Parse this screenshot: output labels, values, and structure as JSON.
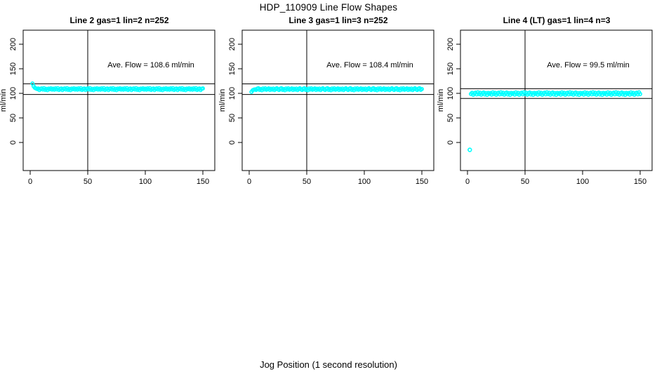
{
  "page": {
    "main_title": "HDP_110909  Line Flow Shapes",
    "x_axis_label": "Jog Position (1 second resolution)"
  },
  "colors": {
    "point": "#00FFFF",
    "axis": "#000000",
    "background": "#FFFFFF"
  },
  "chart_data": {
    "type": "scatter",
    "title": "HDP_110909  Line Flow Shapes",
    "xlabel": "Jog Position (1 second resolution)",
    "ylabel": "ml/min",
    "marker": "open-circle",
    "point_color": "#00FFFF",
    "grid": false,
    "x_ticks": [
      0,
      50,
      100,
      150
    ],
    "y_ticks": [
      0,
      50,
      100,
      150,
      200
    ],
    "xlim": [
      -6,
      160
    ],
    "ylim": [
      -57,
      228
    ],
    "reference_vline_x": 50,
    "panels": [
      {
        "title": "Line 2 gas=1 lin=2 n=252",
        "ave_flow": 108.6,
        "ave_flow_text": "Ave. Flow =  108.6  ml/min",
        "ref_lines": [
          97.7,
          119.5
        ],
        "mean": 108.6,
        "x_start": 2,
        "x_end": 150,
        "noise_pattern": [
          0.9,
          -1.1,
          1.6,
          -0.5,
          2.0,
          -1.6,
          0.3,
          1.2,
          -1.9,
          0.7,
          1.4,
          -0.8,
          1.9,
          -1.4,
          0.5,
          -2.0,
          1.1,
          -0.3,
          1.6,
          -0.9
        ],
        "transient_points": [
          [
            2,
            120
          ],
          [
            3,
            114.5
          ],
          [
            4,
            111.5
          ],
          [
            5,
            110
          ]
        ],
        "outlier_points": []
      },
      {
        "title": "Line 3 gas=1 lin=3 n=252",
        "ave_flow": 108.4,
        "ave_flow_text": "Ave. Flow =  108.4  ml/min",
        "ref_lines": [
          97.6,
          119.2
        ],
        "mean": 108.4,
        "x_start": 2,
        "x_end": 150,
        "noise_pattern": [
          -0.8,
          1.3,
          -1.7,
          0.6,
          1.9,
          -0.4,
          -1.5,
          1.1,
          2.0,
          -1.2,
          0.4,
          -1.9,
          1.5,
          -0.6,
          1.8,
          -1.0,
          0.2,
          1.6,
          -1.4,
          0.8
        ],
        "transient_points": [
          [
            2,
            103
          ],
          [
            3,
            106
          ],
          [
            4,
            107.5
          ]
        ],
        "outlier_points": []
      },
      {
        "title": "Line 4 (LT) gas=1 lin=4 n=3",
        "ave_flow": 99.5,
        "ave_flow_text": "Ave. Flow =  99.5  ml/min",
        "ref_lines": [
          89.6,
          109.5
        ],
        "mean": 99.5,
        "x_start": 3,
        "x_end": 150,
        "noise_pattern": [
          1.2,
          -2.0,
          2.4,
          -0.8,
          1.6,
          -2.4,
          0.5,
          2.0,
          -1.4,
          2.6,
          -0.9,
          1.8,
          -2.2,
          0.7,
          2.2,
          -1.6,
          1.0,
          -2.6,
          1.4,
          -0.5
        ],
        "transient_points": [],
        "outlier_points": [
          [
            2,
            -15
          ]
        ]
      }
    ]
  }
}
